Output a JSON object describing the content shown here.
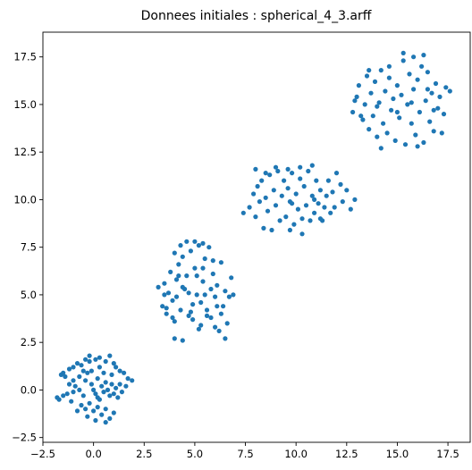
{
  "chart_data": {
    "type": "scatter",
    "title": "Donnees initiales : spherical_4_3.arff",
    "xlabel": "",
    "ylabel": "",
    "xlim": [
      -2.5,
      18.6
    ],
    "ylim": [
      -2.75,
      18.8
    ],
    "xticks": [
      -2.5,
      0.0,
      2.5,
      5.0,
      7.5,
      10.0,
      12.5,
      15.0,
      17.5
    ],
    "xtick_labels": [
      "−2.5",
      "0.0",
      "2.5",
      "5.0",
      "7.5",
      "10.0",
      "12.5",
      "15.0",
      "17.5"
    ],
    "yticks": [
      -2.5,
      0.0,
      2.5,
      5.0,
      7.5,
      10.0,
      12.5,
      15.0,
      17.5
    ],
    "ytick_labels": [
      "−2.5",
      "0.0",
      "2.5",
      "5.0",
      "7.5",
      "10.0",
      "12.5",
      "15.0",
      "17.5"
    ],
    "grid": false,
    "point_color": "#1f77b4",
    "series": [
      {
        "values": [
          [
            -1.6,
            0.8
          ],
          [
            -1.5,
            0.9
          ],
          [
            -1.4,
            0.7
          ],
          [
            -1.2,
            1.1
          ],
          [
            -1.0,
            1.2
          ],
          [
            -0.8,
            1.4
          ],
          [
            -0.6,
            1.3
          ],
          [
            -0.4,
            1.6
          ],
          [
            -0.2,
            1.5
          ],
          [
            -0.2,
            1.8
          ],
          [
            0.1,
            1.6
          ],
          [
            0.3,
            1.7
          ],
          [
            0.6,
            1.5
          ],
          [
            0.8,
            1.8
          ],
          [
            1.0,
            1.4
          ],
          [
            1.1,
            1.2
          ],
          [
            1.3,
            1.0
          ],
          [
            1.5,
            0.9
          ],
          [
            1.7,
            0.6
          ],
          [
            1.9,
            0.5
          ],
          [
            -1.8,
            -0.4
          ],
          [
            -1.7,
            -0.5
          ],
          [
            -1.5,
            -0.3
          ],
          [
            -1.3,
            -0.2
          ],
          [
            -1.1,
            -0.6
          ],
          [
            -1.0,
            -0.1
          ],
          [
            -0.9,
            0.2
          ],
          [
            -0.7,
            0.0
          ],
          [
            -0.5,
            -0.3
          ],
          [
            -0.4,
            0.5
          ],
          [
            -0.3,
            0.9
          ],
          [
            -0.1,
            0.3
          ],
          [
            0.0,
            0.0
          ],
          [
            0.1,
            -0.2
          ],
          [
            0.2,
            0.6
          ],
          [
            0.3,
            -0.5
          ],
          [
            0.4,
            0.2
          ],
          [
            0.5,
            -0.1
          ],
          [
            0.6,
            0.4
          ],
          [
            0.7,
            0.0
          ],
          [
            0.8,
            -0.3
          ],
          [
            0.9,
            0.3
          ],
          [
            1.0,
            -0.2
          ],
          [
            1.1,
            0.1
          ],
          [
            1.2,
            -0.4
          ],
          [
            1.3,
            0.3
          ],
          [
            1.4,
            -0.1
          ],
          [
            -0.6,
            -0.8
          ],
          [
            -0.4,
            -1.0
          ],
          [
            -0.2,
            -0.7
          ],
          [
            0.0,
            -1.1
          ],
          [
            0.2,
            -0.9
          ],
          [
            0.4,
            -1.3
          ],
          [
            0.6,
            -1.0
          ],
          [
            0.8,
            -1.5
          ],
          [
            1.0,
            -1.2
          ],
          [
            0.1,
            -1.6
          ],
          [
            -0.3,
            -1.4
          ],
          [
            0.6,
            -1.7
          ],
          [
            -0.8,
            -1.1
          ],
          [
            -1.0,
            0.5
          ],
          [
            -0.7,
            0.7
          ],
          [
            -0.1,
            1.0
          ],
          [
            0.5,
            0.9
          ],
          [
            0.9,
            0.8
          ],
          [
            1.6,
            0.2
          ],
          [
            -1.2,
            0.3
          ],
          [
            0.3,
            1.2
          ],
          [
            -0.5,
            1.0
          ],
          [
            0.2,
            -0.4
          ]
        ]
      },
      {
        "values": [
          [
            3.2,
            5.4
          ],
          [
            3.4,
            4.4
          ],
          [
            3.5,
            5.6
          ],
          [
            3.6,
            4.0
          ],
          [
            3.7,
            5.1
          ],
          [
            3.8,
            6.2
          ],
          [
            3.9,
            4.7
          ],
          [
            4.0,
            3.6
          ],
          [
            4.1,
            5.8
          ],
          [
            4.2,
            6.6
          ],
          [
            4.3,
            4.2
          ],
          [
            4.4,
            7.0
          ],
          [
            4.5,
            5.3
          ],
          [
            4.6,
            6.0
          ],
          [
            4.7,
            3.9
          ],
          [
            4.8,
            7.3
          ],
          [
            4.9,
            4.5
          ],
          [
            5.0,
            6.4
          ],
          [
            5.1,
            5.0
          ],
          [
            5.2,
            7.6
          ],
          [
            5.3,
            3.4
          ],
          [
            5.4,
            5.7
          ],
          [
            5.5,
            6.9
          ],
          [
            5.6,
            4.2
          ],
          [
            5.7,
            7.5
          ],
          [
            5.8,
            3.8
          ],
          [
            5.9,
            6.1
          ],
          [
            6.0,
            4.9
          ],
          [
            6.1,
            5.5
          ],
          [
            6.2,
            3.1
          ],
          [
            6.3,
            6.7
          ],
          [
            6.4,
            4.4
          ],
          [
            6.5,
            5.2
          ],
          [
            6.6,
            3.5
          ],
          [
            6.7,
            4.9
          ],
          [
            6.8,
            5.9
          ],
          [
            6.9,
            5.0
          ],
          [
            4.0,
            7.2
          ],
          [
            4.3,
            7.6
          ],
          [
            4.6,
            7.8
          ],
          [
            5.0,
            7.8
          ],
          [
            5.4,
            7.7
          ],
          [
            4.0,
            2.7
          ],
          [
            4.4,
            2.6
          ],
          [
            6.5,
            2.7
          ],
          [
            3.5,
            5.0
          ],
          [
            4.1,
            4.9
          ],
          [
            5.3,
            4.6
          ],
          [
            5.8,
            5.3
          ],
          [
            4.9,
            3.7
          ],
          [
            5.6,
            3.9
          ],
          [
            6.3,
            4.0
          ],
          [
            4.4,
            5.4
          ],
          [
            5.1,
            6.0
          ],
          [
            5.9,
            6.8
          ],
          [
            3.9,
            3.8
          ],
          [
            4.8,
            4.1
          ],
          [
            5.5,
            5.0
          ],
          [
            6.1,
            4.4
          ],
          [
            4.2,
            6.0
          ],
          [
            3.6,
            4.3
          ],
          [
            5.2,
            3.2
          ],
          [
            4.7,
            5.1
          ],
          [
            6.0,
            3.3
          ],
          [
            5.4,
            6.4
          ]
        ]
      },
      {
        "values": [
          [
            7.4,
            9.3
          ],
          [
            7.7,
            9.6
          ],
          [
            7.9,
            10.3
          ],
          [
            8.0,
            9.1
          ],
          [
            8.1,
            10.7
          ],
          [
            8.2,
            9.9
          ],
          [
            8.3,
            11.0
          ],
          [
            8.4,
            8.5
          ],
          [
            8.5,
            10.1
          ],
          [
            8.6,
            9.4
          ],
          [
            8.7,
            11.3
          ],
          [
            8.8,
            8.4
          ],
          [
            8.9,
            10.5
          ],
          [
            9.0,
            9.7
          ],
          [
            9.1,
            11.5
          ],
          [
            9.2,
            8.9
          ],
          [
            9.3,
            10.2
          ],
          [
            9.4,
            11.0
          ],
          [
            9.5,
            9.1
          ],
          [
            9.6,
            10.6
          ],
          [
            9.7,
            9.9
          ],
          [
            9.8,
            11.4
          ],
          [
            9.9,
            8.7
          ],
          [
            10.0,
            10.3
          ],
          [
            10.1,
            9.5
          ],
          [
            10.2,
            11.1
          ],
          [
            10.3,
            9.0
          ],
          [
            10.4,
            10.7
          ],
          [
            10.5,
            9.7
          ],
          [
            10.6,
            11.5
          ],
          [
            10.7,
            8.9
          ],
          [
            10.8,
            10.2
          ],
          [
            10.9,
            9.3
          ],
          [
            11.0,
            11.0
          ],
          [
            11.1,
            9.8
          ],
          [
            11.2,
            10.5
          ],
          [
            11.3,
            8.9
          ],
          [
            11.4,
            9.6
          ],
          [
            11.5,
            10.2
          ],
          [
            11.6,
            11.0
          ],
          [
            11.7,
            9.3
          ],
          [
            11.8,
            10.4
          ],
          [
            11.9,
            9.6
          ],
          [
            12.0,
            11.4
          ],
          [
            12.2,
            10.8
          ],
          [
            12.3,
            9.9
          ],
          [
            12.5,
            10.5
          ],
          [
            12.7,
            9.5
          ],
          [
            12.9,
            10.0
          ],
          [
            8.5,
            11.4
          ],
          [
            9.0,
            11.7
          ],
          [
            9.6,
            11.6
          ],
          [
            10.2,
            11.7
          ],
          [
            10.8,
            11.8
          ],
          [
            10.3,
            8.2
          ],
          [
            9.7,
            8.4
          ],
          [
            8.0,
            11.6
          ],
          [
            11.2,
            9.0
          ],
          [
            9.8,
            9.8
          ],
          [
            10.9,
            10.0
          ]
        ]
      },
      {
        "values": [
          [
            12.8,
            14.6
          ],
          [
            13.0,
            15.4
          ],
          [
            13.1,
            16.0
          ],
          [
            13.3,
            14.2
          ],
          [
            13.4,
            15.0
          ],
          [
            13.5,
            16.5
          ],
          [
            13.6,
            13.7
          ],
          [
            13.7,
            15.6
          ],
          [
            13.8,
            14.4
          ],
          [
            13.9,
            16.2
          ],
          [
            14.0,
            13.3
          ],
          [
            14.1,
            15.1
          ],
          [
            14.2,
            16.8
          ],
          [
            14.3,
            14.0
          ],
          [
            14.4,
            15.7
          ],
          [
            14.5,
            13.5
          ],
          [
            14.6,
            16.4
          ],
          [
            14.7,
            14.7
          ],
          [
            14.8,
            15.3
          ],
          [
            14.9,
            13.1
          ],
          [
            15.0,
            16.0
          ],
          [
            15.1,
            14.3
          ],
          [
            15.2,
            15.5
          ],
          [
            15.3,
            17.3
          ],
          [
            15.4,
            12.9
          ],
          [
            15.5,
            15.0
          ],
          [
            15.6,
            16.6
          ],
          [
            15.7,
            14.0
          ],
          [
            15.8,
            15.8
          ],
          [
            15.9,
            13.4
          ],
          [
            16.0,
            16.3
          ],
          [
            16.1,
            14.6
          ],
          [
            16.2,
            17.0
          ],
          [
            16.3,
            13.0
          ],
          [
            16.4,
            15.2
          ],
          [
            16.5,
            16.7
          ],
          [
            16.6,
            14.1
          ],
          [
            16.7,
            15.6
          ],
          [
            16.8,
            13.6
          ],
          [
            16.9,
            16.1
          ],
          [
            17.0,
            14.8
          ],
          [
            17.1,
            15.4
          ],
          [
            17.2,
            13.5
          ],
          [
            17.3,
            14.5
          ],
          [
            17.4,
            15.9
          ],
          [
            17.6,
            15.7
          ],
          [
            15.3,
            17.7
          ],
          [
            15.8,
            17.5
          ],
          [
            16.3,
            17.6
          ],
          [
            14.6,
            17.0
          ],
          [
            13.6,
            16.8
          ],
          [
            12.9,
            15.2
          ],
          [
            14.2,
            12.7
          ],
          [
            16.0,
            12.8
          ],
          [
            15.0,
            14.6
          ],
          [
            15.7,
            15.1
          ],
          [
            16.5,
            15.8
          ],
          [
            14.0,
            14.9
          ],
          [
            13.2,
            14.4
          ],
          [
            16.8,
            14.7
          ]
        ]
      }
    ]
  }
}
